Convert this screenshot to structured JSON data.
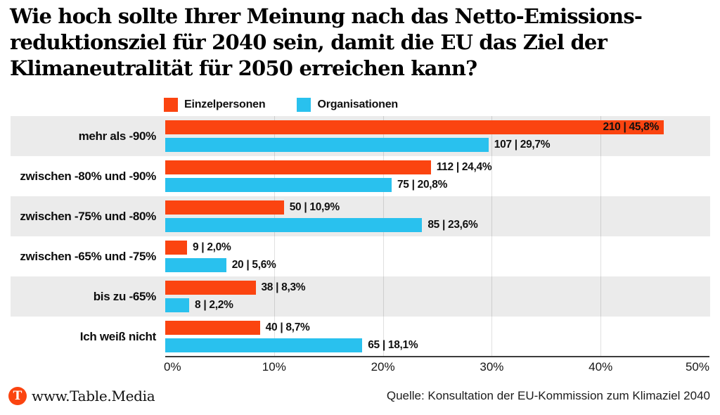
{
  "title": {
    "lines": [
      "Wie hoch sollte Ihrer Meinung nach das Netto-Emissions-",
      "reduktionsziel für 2040 sein, damit die EU das Ziel der",
      "Klimaneutralität für 2050 erreichen kann?"
    ]
  },
  "legend": {
    "items": [
      {
        "label": "Einzelpersonen",
        "color": "#fb4410"
      },
      {
        "label": "Organisationen",
        "color": "#29c1ee"
      }
    ]
  },
  "chart_data": {
    "type": "bar",
    "orientation": "horizontal",
    "title": "Wie hoch sollte Ihrer Meinung nach das Netto-Emissionsreduktionsziel für 2040 sein, damit die EU das Ziel der Klimaneutralität für 2050 erreichen kann?",
    "categories": [
      "mehr als -90%",
      "zwischen -80% und -90%",
      "zwischen -75% und -80%",
      "zwischen -65% und -75%",
      "bis zu -65%",
      "Ich weiß nicht"
    ],
    "series": [
      {
        "name": "Einzelpersonen",
        "color": "#fb4410",
        "counts": [
          210,
          112,
          50,
          9,
          38,
          40
        ],
        "percents": [
          45.8,
          24.4,
          10.9,
          2.0,
          8.3,
          8.7
        ],
        "value_labels": [
          "210 | 45,8%",
          "112 | 24,4%",
          "50 | 10,9%",
          "9 | 2,0%",
          "38 | 8,3%",
          "40 | 8,7%"
        ]
      },
      {
        "name": "Organisationen",
        "color": "#29c1ee",
        "counts": [
          107,
          75,
          85,
          20,
          8,
          65
        ],
        "percents": [
          29.7,
          20.8,
          23.6,
          5.6,
          2.2,
          18.1
        ],
        "value_labels": [
          "107 | 29,7%",
          "75 | 20,8%",
          "85 | 23,6%",
          "20 | 5,6%",
          "8 | 2,2%",
          "65 | 18,1%"
        ]
      }
    ],
    "x_ticks": [
      "0%",
      "10%",
      "20%",
      "30%",
      "40%",
      "50%"
    ],
    "x_tick_values": [
      0,
      10,
      20,
      30,
      40,
      50
    ],
    "xlim": [
      0,
      50
    ],
    "grid": "vertical",
    "row_band_color": "#ebebeb",
    "legend_position": "top"
  },
  "footer": {
    "logo_letter": "T",
    "logo_color": "#fb4410",
    "brand": "www.Table.Media",
    "source": "Quelle: Konsultation der EU-Kommission zum Klimaziel 2040"
  }
}
